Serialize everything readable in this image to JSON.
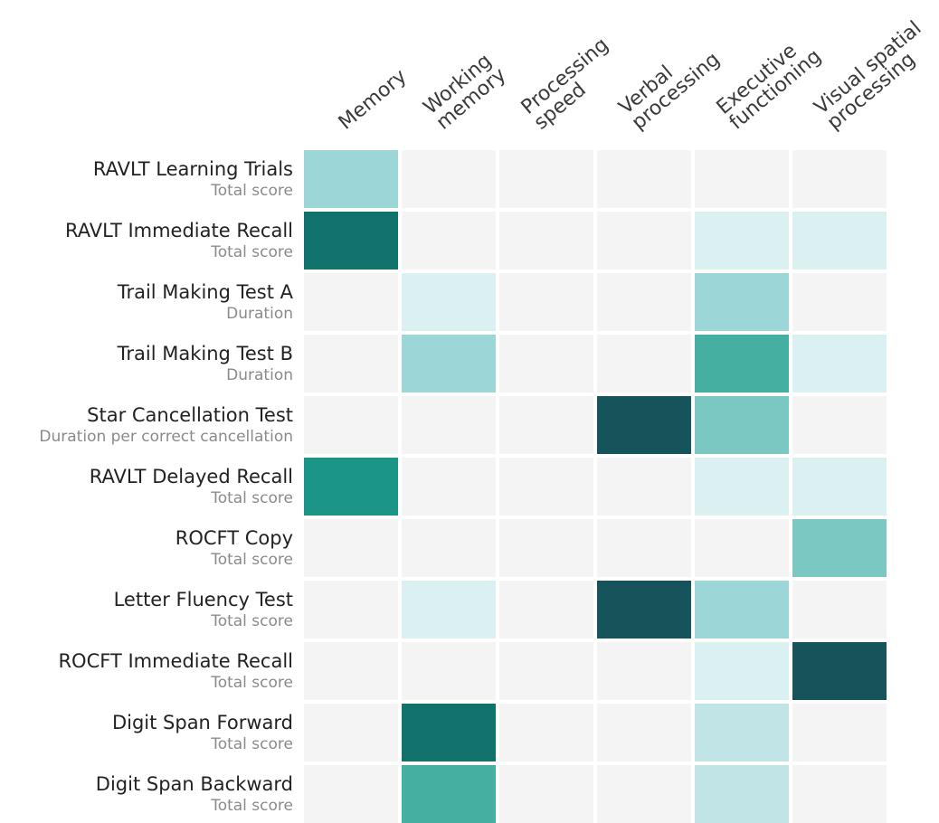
{
  "chart_data": {
    "type": "heatmap",
    "title": "",
    "columns": [
      {
        "lines": [
          "Memory"
        ]
      },
      {
        "lines": [
          "Working",
          "memory"
        ]
      },
      {
        "lines": [
          "Processing",
          "speed"
        ]
      },
      {
        "lines": [
          "Verbal",
          "processing"
        ]
      },
      {
        "lines": [
          "Executive",
          "functioning"
        ]
      },
      {
        "lines": [
          "Visual spatial",
          "processing"
        ]
      }
    ],
    "rows": [
      {
        "label": "RAVLT Learning Trials",
        "sublabel": "Total score"
      },
      {
        "label": "RAVLT  Immediate Recall",
        "sublabel": "Total score"
      },
      {
        "label": "Trail Making Test A",
        "sublabel": "Duration"
      },
      {
        "label": "Trail Making Test B",
        "sublabel": "Duration"
      },
      {
        "label": "Star Cancellation Test",
        "sublabel": "Duration per correct cancellation"
      },
      {
        "label": "RAVLT  Delayed Recall",
        "sublabel": "Total score"
      },
      {
        "label": "ROCFT Copy",
        "sublabel": "Total score"
      },
      {
        "label": "Letter Fluency Test",
        "sublabel": "Total score"
      },
      {
        "label": "ROCFT Immediate Recall",
        "sublabel": "Total score"
      },
      {
        "label": "Digit Span Forward",
        "sublabel": "Total score"
      },
      {
        "label": "Digit Span Backward",
        "sublabel": "Total score"
      }
    ],
    "values": [
      [
        3,
        0,
        0,
        0,
        0,
        0
      ],
      [
        7,
        0,
        0,
        0,
        1,
        1
      ],
      [
        0,
        1,
        0,
        0,
        3,
        0
      ],
      [
        0,
        3,
        0,
        0,
        5,
        1
      ],
      [
        0,
        0,
        0,
        8,
        4,
        0
      ],
      [
        6,
        0,
        0,
        0,
        1,
        1
      ],
      [
        0,
        0,
        0,
        0,
        0,
        4
      ],
      [
        0,
        1,
        0,
        8,
        3,
        0
      ],
      [
        0,
        0,
        0,
        0,
        1,
        8
      ],
      [
        0,
        7,
        0,
        0,
        2,
        0
      ],
      [
        0,
        5,
        0,
        0,
        2,
        0
      ]
    ],
    "color_scale": {
      "0": "#f4f4f4",
      "1": "#daf0f1",
      "2": "#c1e5e6",
      "3": "#9dd6d6",
      "4": "#7bc8c3",
      "5": "#45b0a1",
      "6": "#1b9585",
      "7": "#12736d",
      "8": "#16535a"
    }
  }
}
